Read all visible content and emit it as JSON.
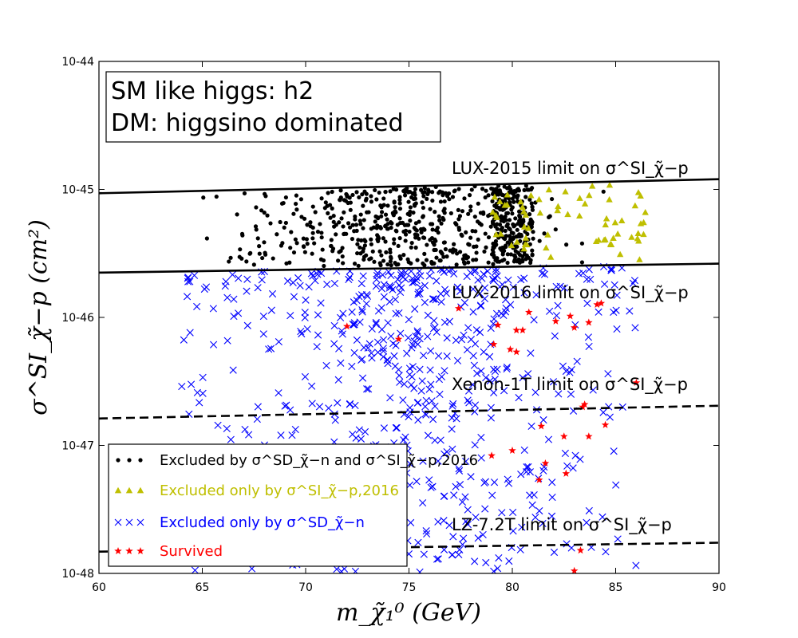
{
  "chart_data": {
    "type": "scatter",
    "xlabel": "m_χ̃₁⁰ (GeV)",
    "ylabel": "σ^SI_χ̃−p (cm²)",
    "xlim": [
      60,
      90
    ],
    "ylim_log10": [
      -48,
      -44
    ],
    "x_ticks": [
      "60",
      "65",
      "70",
      "75",
      "80",
      "85",
      "90"
    ],
    "y_ticks": [
      "10-48",
      "10-47",
      "10-46",
      "10-45",
      "10-44"
    ],
    "info_box": [
      "SM like higgs: h2",
      "DM: higgsino dominated"
    ],
    "limit_lines": [
      {
        "name": "LUX-2015 limit on σ^SI_χ̃−p",
        "style": "solid",
        "x": [
          60,
          90
        ],
        "log10_y": [
          -45.03,
          -44.92
        ]
      },
      {
        "name": "LUX-2016 limit on σ^SI_χ̃−p",
        "style": "solid",
        "x": [
          60,
          90
        ],
        "log10_y": [
          -45.65,
          -45.58
        ]
      },
      {
        "name": "Xenon-1T limit on σ^SI_χ̃−p",
        "style": "dashed",
        "x": [
          60,
          90
        ],
        "log10_y": [
          -46.79,
          -46.69
        ]
      },
      {
        "name": "LZ-7.2T limit on σ^SI_χ̃−p",
        "style": "dashed",
        "x": [
          60,
          90
        ],
        "log10_y": [
          -47.83,
          -47.76
        ]
      }
    ],
    "legend": [
      {
        "label": "Excluded by σ^SD_χ̃−n and σ^SI_χ̃−p,2016",
        "color": "#000000",
        "marker": "dot"
      },
      {
        "label": "Excluded only by σ^SI_χ̃−p,2016",
        "color": "#bfbf00",
        "marker": "triangle"
      },
      {
        "label": "Excluded only by σ^SD_χ̃−n",
        "color": "#0000ff",
        "marker": "cross"
      },
      {
        "label": "Survived",
        "color": "#ff0000",
        "marker": "star"
      }
    ],
    "series": [
      {
        "name": "Excluded by SD and SI 2016",
        "marker": "dot",
        "color": "#000000",
        "count": 720,
        "x_range": [
          63.3,
          86.0
        ],
        "log10_y_range": [
          -45.66,
          -45.0
        ],
        "x_distribution_center": 78.5,
        "dense_cluster": [
          79.0,
          81.0
        ]
      },
      {
        "name": "Excluded only by SI 2016",
        "marker": "triangle",
        "color": "#bfbf00",
        "count": 65,
        "x_range": [
          79.0,
          86.5
        ],
        "log10_y_range": [
          -45.5,
          -45.0
        ]
      },
      {
        "name": "Excluded only by SD",
        "marker": "cross",
        "color": "#0000ff",
        "count": 620,
        "x_range": [
          64.0,
          86.0
        ],
        "log10_y_range": [
          -48.0,
          -45.65
        ]
      },
      {
        "name": "Survived",
        "marker": "star",
        "color": "#ff0000",
        "points": [
          [
            72.0,
            -46.07
          ],
          [
            74.5,
            -46.17
          ],
          [
            77.4,
            -45.93
          ],
          [
            79.1,
            -46.21
          ],
          [
            79.3,
            -46.06
          ],
          [
            79.9,
            -46.25
          ],
          [
            80.2,
            -46.27
          ],
          [
            80.2,
            -46.1
          ],
          [
            80.5,
            -46.1
          ],
          [
            80.8,
            -45.96
          ],
          [
            81.4,
            -46.85
          ],
          [
            81.3,
            -47.27
          ],
          [
            81.6,
            -47.14
          ],
          [
            82.1,
            -46.03
          ],
          [
            82.5,
            -46.93
          ],
          [
            82.6,
            -47.22
          ],
          [
            82.8,
            -45.99
          ],
          [
            83.0,
            -46.08
          ],
          [
            83.0,
            -47.98
          ],
          [
            83.3,
            -47.82
          ],
          [
            83.4,
            -46.7
          ],
          [
            83.5,
            -46.68
          ],
          [
            83.7,
            -46.04
          ],
          [
            83.7,
            -46.93
          ],
          [
            84.1,
            -45.9
          ],
          [
            84.3,
            -45.89
          ],
          [
            84.5,
            -46.84
          ],
          [
            86.0,
            -46.51
          ],
          [
            79.0,
            -47.08
          ],
          [
            80.0,
            -47.04
          ]
        ]
      }
    ]
  }
}
